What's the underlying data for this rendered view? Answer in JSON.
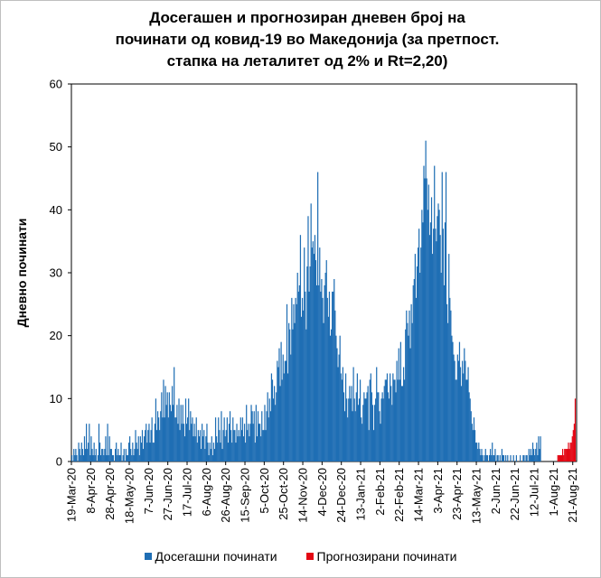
{
  "chart_data": {
    "type": "bar",
    "title": "Досегашен и прогнозиран дневен број на\nпочинати од ковид-19 во Македонија (за претпост.\nстапка на леталитет од 2% и Rt=2,20)",
    "ylabel": "Дневно починати",
    "xlabel": "",
    "ylim": [
      0,
      60
    ],
    "yticks": [
      0,
      10,
      20,
      30,
      40,
      50,
      60
    ],
    "x_start": "2020-03-19",
    "xtick_labels": [
      "19-Mar-20",
      "8-Apr-20",
      "28-Apr-20",
      "18-May-20",
      "7-Jun-20",
      "27-Jun-20",
      "17-Jul-20",
      "6-Aug-20",
      "26-Aug-20",
      "15-Sep-20",
      "5-Oct-20",
      "25-Oct-20",
      "14-Nov-20",
      "4-Dec-20",
      "24-Dec-20",
      "13-Jan-21",
      "2-Feb-21",
      "22-Feb-21",
      "14-Mar-21",
      "3-Apr-21",
      "23-Apr-21",
      "13-May-21",
      "2-Jun-21",
      "22-Jun-21",
      "12-Jul-21",
      "1-Aug-21",
      "21-Aug-21"
    ],
    "grid": false,
    "legend_position": "bottom",
    "series": [
      {
        "name": "Досегашни починати",
        "color": "#1f6eb4",
        "values": [
          1,
          0,
          2,
          1,
          2,
          1,
          0,
          3,
          2,
          1,
          3,
          2,
          1,
          4,
          2,
          6,
          2,
          3,
          6,
          1,
          4,
          2,
          1,
          3,
          1,
          2,
          0,
          1,
          6,
          3,
          1,
          2,
          2,
          1,
          2,
          4,
          1,
          6,
          1,
          4,
          2,
          2,
          1,
          1,
          0,
          2,
          3,
          1,
          2,
          1,
          1,
          3,
          0,
          1,
          2,
          0,
          2,
          1,
          1,
          3,
          4,
          2,
          1,
          3,
          1,
          2,
          5,
          3,
          2,
          4,
          1,
          4,
          3,
          5,
          2,
          4,
          5,
          6,
          3,
          5,
          6,
          3,
          5,
          7,
          3,
          3,
          6,
          10,
          5,
          8,
          7,
          5,
          8,
          11,
          7,
          13,
          7,
          12,
          9,
          11,
          7,
          11,
          9,
          8,
          12,
          9,
          15,
          7,
          7,
          9,
          6,
          10,
          5,
          9,
          6,
          9,
          6,
          4,
          10,
          6,
          7,
          10,
          5,
          8,
          6,
          7,
          4,
          6,
          4,
          7,
          3,
          5,
          4,
          5,
          2,
          6,
          4,
          5,
          2,
          4,
          6,
          3,
          1,
          3,
          2,
          4,
          1,
          3,
          2,
          7,
          4,
          3,
          7,
          5,
          3,
          8,
          2,
          5,
          7,
          4,
          5,
          7,
          3,
          6,
          8,
          5,
          3,
          7,
          5,
          5,
          3,
          6,
          4,
          5,
          4,
          7,
          5,
          7,
          4,
          6,
          3,
          9,
          5,
          6,
          4,
          6,
          9,
          8,
          6,
          8,
          3,
          9,
          4,
          8,
          6,
          6,
          4,
          8,
          5,
          5,
          9,
          5,
          8,
          11,
          7,
          10,
          8,
          14,
          13,
          10,
          12,
          9,
          11,
          16,
          15,
          18,
          12,
          19,
          13,
          17,
          14,
          16,
          16,
          25,
          14,
          22,
          21,
          17,
          26,
          21,
          25,
          22,
          26,
          25,
          30,
          27,
          28,
          36,
          23,
          26,
          24,
          34,
          27,
          21,
          31,
          39,
          27,
          31,
          41,
          34,
          35,
          33,
          36,
          32,
          28,
          46,
          28,
          34,
          27,
          29,
          26,
          22,
          28,
          30,
          32,
          26,
          23,
          27,
          20,
          21,
          27,
          27,
          29,
          24,
          20,
          18,
          15,
          17,
          20,
          14,
          13,
          15,
          11,
          8,
          14,
          10,
          7,
          10,
          12,
          10,
          12,
          8,
          15,
          10,
          8,
          11,
          14,
          9,
          10,
          13,
          7,
          6,
          9,
          11,
          10,
          10,
          11,
          12,
          5,
          13,
          14,
          11,
          9,
          5,
          9,
          10,
          15,
          11,
          11,
          8,
          6,
          10,
          11,
          10,
          12,
          13,
          13,
          14,
          11,
          10,
          14,
          12,
          9,
          14,
          13,
          13,
          11,
          16,
          13,
          18,
          13,
          19,
          12,
          12,
          15,
          13,
          21,
          24,
          22,
          20,
          24,
          18,
          25,
          22,
          28,
          29,
          33,
          26,
          31,
          34,
          37,
          30,
          34,
          40,
          38,
          47,
          45,
          51,
          45,
          40,
          44,
          36,
          38,
          42,
          33,
          37,
          47,
          37,
          35,
          39,
          41,
          40,
          36,
          30,
          46,
          37,
          28,
          38,
          46,
          25,
          22,
          33,
          26,
          24,
          20,
          19,
          17,
          16,
          13,
          13,
          17,
          16,
          19,
          15,
          12,
          16,
          14,
          18,
          16,
          13,
          13,
          15,
          11,
          10,
          8,
          6,
          5,
          7,
          5,
          3,
          3,
          2,
          3,
          2,
          1,
          2,
          1,
          0,
          1,
          2,
          1,
          1,
          0,
          1,
          2,
          1,
          3,
          1,
          1,
          2,
          0,
          1,
          1,
          0,
          1,
          0,
          2,
          1,
          1,
          0,
          1,
          0,
          1,
          0,
          0,
          1,
          0,
          0,
          1,
          0,
          0,
          1,
          0,
          0,
          0,
          1,
          0,
          0,
          1,
          1,
          0,
          1,
          1,
          0,
          2,
          1,
          2,
          1,
          3,
          2,
          1,
          2,
          3,
          1,
          4,
          2,
          4
        ]
      },
      {
        "name": "Прогнозирани починати",
        "color": "#e30613",
        "start": "2021-08-05",
        "values": [
          1,
          1,
          1,
          1,
          1,
          2,
          1,
          2,
          2,
          2,
          2,
          3,
          2,
          3,
          3,
          4,
          5,
          6,
          10
        ]
      }
    ]
  }
}
